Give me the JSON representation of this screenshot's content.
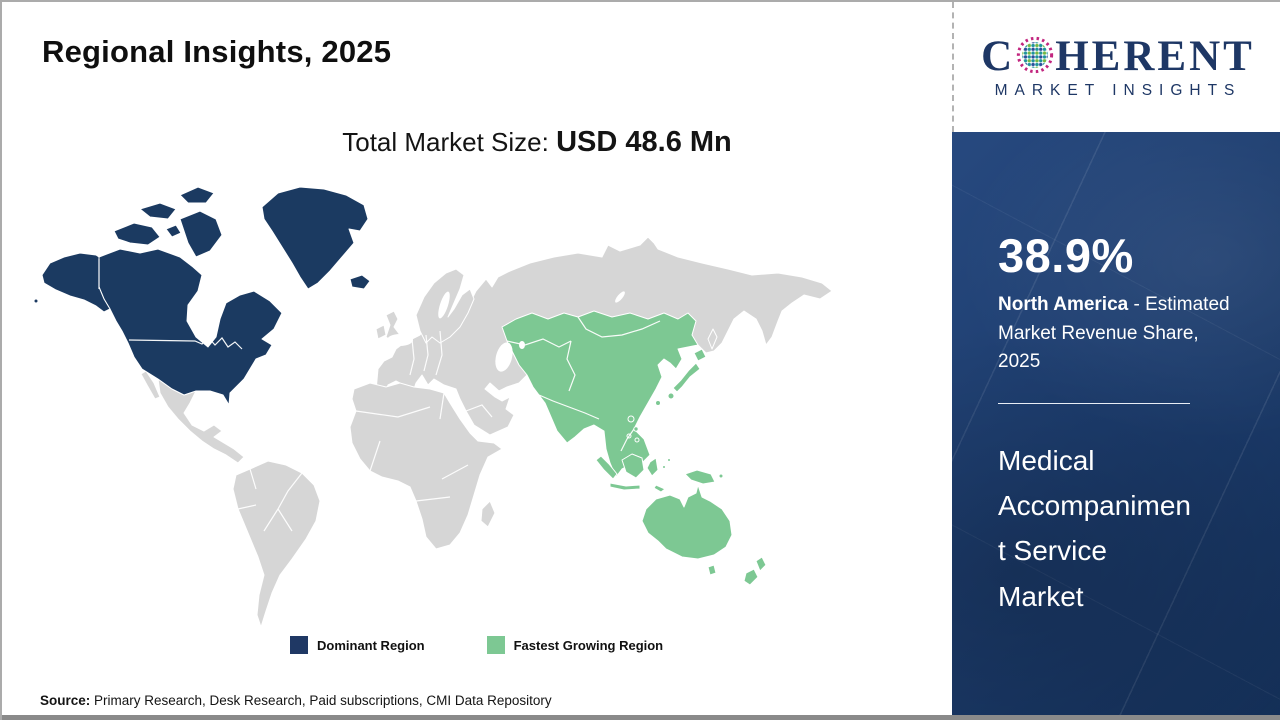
{
  "header": {
    "title": "Regional Insights, 2025"
  },
  "market_size": {
    "label": "Total Market Size: ",
    "value": "USD 48.6 Mn"
  },
  "logo": {
    "word_start": "C",
    "word_end": "HERENT",
    "subtext": "MARKET INSIGHTS",
    "globe_colors": {
      "ring": "#c2267f",
      "teal": "#1f939b",
      "green": "#74b843",
      "blue": "#2b4d9b"
    }
  },
  "map": {
    "regions": [
      {
        "name": "North America",
        "role": "Dominant Region",
        "color": "#1b3a61"
      },
      {
        "name": "Asia Pacific",
        "role": "Fastest Growing Region",
        "color": "#7dc893"
      }
    ],
    "other_land_color": "#d6d6d6"
  },
  "legend": {
    "items": [
      {
        "label": "Dominant Region",
        "color": "#1f3864"
      },
      {
        "label": "Fastest Growing Region",
        "color": "#7dc893"
      }
    ]
  },
  "sidebar": {
    "share_value": "38.9%",
    "share_region": "North America",
    "share_desc_rest": " - Estimated Market Revenue Share, 2025",
    "market_name_lines": [
      "Medical",
      "Accompanimen",
      "t Service",
      "Market"
    ],
    "bg_color": "#1c3c6d",
    "bg_color_hi": "#27497f",
    "bg_color_lo": "#142f57"
  },
  "source": {
    "label": "Source:",
    "text": " Primary Research, Desk Research, Paid subscriptions, CMI Data Repository"
  }
}
